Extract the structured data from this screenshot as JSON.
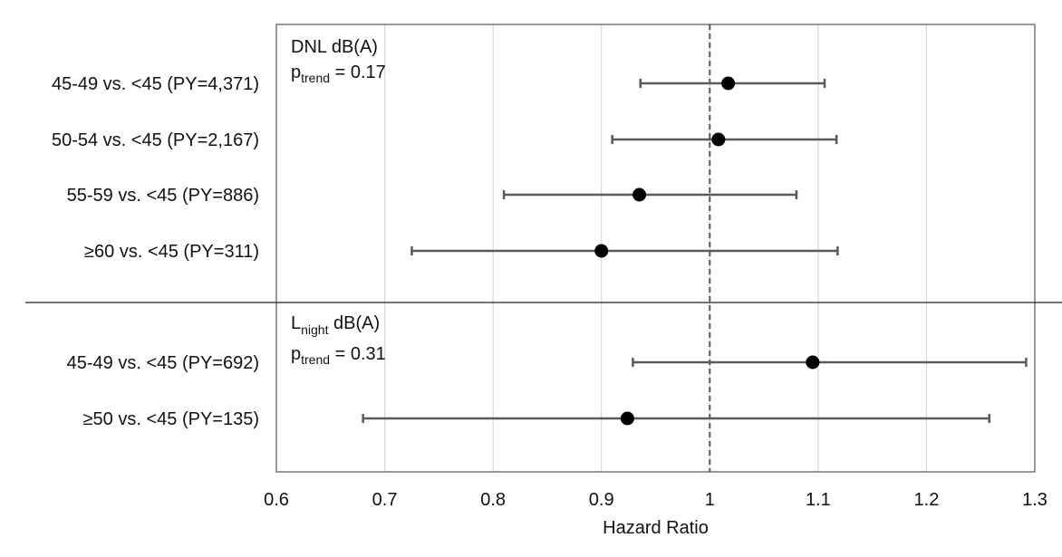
{
  "chart_data": {
    "type": "forest",
    "xlabel": "Hazard Ratio",
    "xlim": [
      0.6,
      1.3
    ],
    "xticks": [
      0.6,
      0.7,
      0.8,
      0.9,
      1,
      1.1,
      1.2,
      1.3
    ],
    "xtick_labels": [
      "0.6",
      "0.7",
      "0.8",
      "0.9",
      "1",
      "1.1",
      "1.2",
      "1.3"
    ],
    "reference_line": 1,
    "grid": "vertical",
    "panels": [
      {
        "title_main": "DNL",
        "title_sub": "",
        "title_unit": " dB(A)",
        "ptrend_label": "p",
        "ptrend_sub": "trend",
        "ptrend_value": " = 0.17",
        "rows": [
          {
            "label": "45-49 vs. <45 (PY=4,371)",
            "hr": 1.017,
            "lo": 0.936,
            "hi": 1.106
          },
          {
            "label": "50-54 vs. <45 (PY=2,167)",
            "hr": 1.008,
            "lo": 0.91,
            "hi": 1.117
          },
          {
            "label": "55-59 vs. <45 (PY=886)",
            "hr": 0.935,
            "lo": 0.81,
            "hi": 1.08
          },
          {
            "label": "≥60 vs. <45 (PY=311)",
            "hr": 0.9,
            "lo": 0.725,
            "hi": 1.118
          }
        ]
      },
      {
        "title_main": "L",
        "title_sub": "night",
        "title_unit": " dB(A)",
        "ptrend_label": "p",
        "ptrend_sub": "trend",
        "ptrend_value": " = 0.31",
        "rows": [
          {
            "label": "45-49 vs. <45 (PY=692)",
            "hr": 1.095,
            "lo": 0.929,
            "hi": 1.292
          },
          {
            "label": "≥50 vs. <45 (PY=135)",
            "hr": 0.924,
            "lo": 0.68,
            "hi": 1.258
          }
        ]
      }
    ]
  }
}
